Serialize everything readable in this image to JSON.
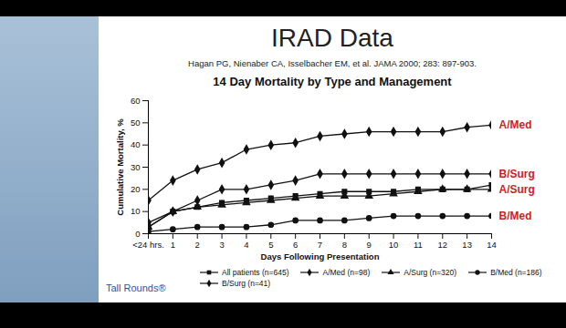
{
  "slide": {
    "title": "IRAD Data",
    "citation": "Hagan PG, Nienaber CA, Isselbacher EM, et al.  JAMA 2000; 283: 897-903.",
    "footer": "Tall Rounds®"
  },
  "chart_data": {
    "type": "line",
    "title": "14 Day Mortality by Type and Management",
    "x_label": "Days Following Presentation",
    "y_label": "Cumulative Mortality, %",
    "x": [
      0,
      1,
      2,
      3,
      4,
      5,
      6,
      7,
      8,
      9,
      10,
      11,
      12,
      13,
      14
    ],
    "xlim": [
      0,
      14
    ],
    "xticks": [
      {
        "value": 0,
        "label": "<24 hrs."
      },
      1,
      2,
      3,
      4,
      5,
      6,
      7,
      8,
      9,
      10,
      11,
      12,
      13,
      14
    ],
    "ylim": [
      0,
      60
    ],
    "yticks": [
      0,
      10,
      20,
      30,
      40,
      50,
      60
    ],
    "grid": false,
    "legend": "bottom",
    "series": [
      {
        "name": "All patients (n=645)",
        "color": "#111111",
        "marker": "square",
        "values": [
          3,
          10,
          12,
          14,
          15,
          16,
          17,
          18,
          19,
          19,
          19,
          20,
          20,
          20,
          22
        ]
      },
      {
        "name": "A/Med (n=98)",
        "color": "#111111",
        "marker": "diamond",
        "values": [
          15,
          24,
          29,
          32,
          38,
          40,
          41,
          44,
          45,
          46,
          46,
          46,
          46,
          48,
          49
        ]
      },
      {
        "name": "A/Surg (n=320)",
        "color": "#111111",
        "marker": "triangle",
        "values": [
          3,
          10,
          12,
          13,
          14,
          15,
          16,
          17,
          17,
          17,
          18,
          19,
          20,
          20,
          20
        ]
      },
      {
        "name": "B/Med (n=186)",
        "color": "#111111",
        "marker": "circle",
        "values": [
          1,
          2,
          3,
          3,
          3,
          4,
          6,
          6,
          6,
          7,
          8,
          8,
          8,
          8,
          8
        ]
      },
      {
        "name": "B/Surg (n=41)",
        "color": "#111111",
        "marker": "diamond",
        "values": [
          5,
          10,
          15,
          20,
          20,
          22,
          24,
          27,
          27,
          27,
          27,
          27,
          27,
          27,
          27
        ]
      }
    ],
    "annotations": [
      {
        "text": "A/Med",
        "x": 14,
        "y": 49,
        "color": "#cc1f1f"
      },
      {
        "text": "B/Surg",
        "x": 14,
        "y": 27,
        "color": "#cc1f1f"
      },
      {
        "text": "A/Surg",
        "x": 14,
        "y": 20,
        "color": "#cc1f1f"
      },
      {
        "text": "B/Med",
        "x": 14,
        "y": 8,
        "color": "#cc1f1f"
      }
    ]
  }
}
